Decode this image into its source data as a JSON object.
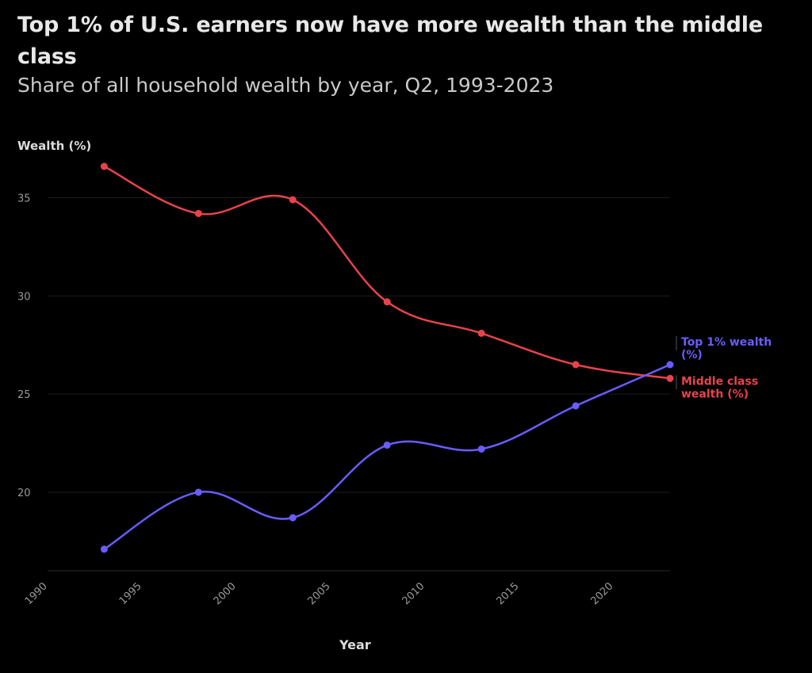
{
  "title": "Top 1% of U.S. earners now have more wealth than the middle class",
  "subtitle": "Share of all household wealth by year, Q2, 1993-2023",
  "colors": {
    "background": "#000000",
    "top1": "#6a5cff",
    "middle": "#e8434b",
    "grid": "#1c1c1c",
    "tick": "#9a9a9a"
  },
  "chart_data": {
    "type": "line",
    "title": "Top 1% of U.S. earners now have more wealth than the middle class",
    "subtitle": "Share of all household wealth by year, Q2, 1993-2023",
    "xlabel": "Year",
    "ylabel": "Wealth (%)",
    "xlim": [
      1990,
      2023
    ],
    "ylim": [
      16,
      37
    ],
    "xticks": [
      "1990",
      "1995",
      "2000",
      "2005",
      "2010",
      "2015",
      "2020"
    ],
    "yticks": [
      "20",
      "25",
      "30",
      "35"
    ],
    "x": [
      1993,
      1998,
      2003,
      2008,
      2013,
      2018,
      2023
    ],
    "series": [
      {
        "name": "Middle class wealth (%)",
        "label_lines": [
          "Middle class",
          "wealth (%)"
        ],
        "color": "#e8434b",
        "values": [
          36.6,
          34.2,
          34.9,
          29.7,
          28.1,
          26.5,
          25.8
        ]
      },
      {
        "name": "Top 1% wealth (%)",
        "label_lines": [
          "Top 1% wealth",
          "(%)"
        ],
        "color": "#6a5cff",
        "values": [
          17.1,
          20.0,
          18.7,
          22.4,
          22.2,
          24.4,
          26.5
        ]
      }
    ],
    "grid": true,
    "legend": "end-of-line labels"
  }
}
